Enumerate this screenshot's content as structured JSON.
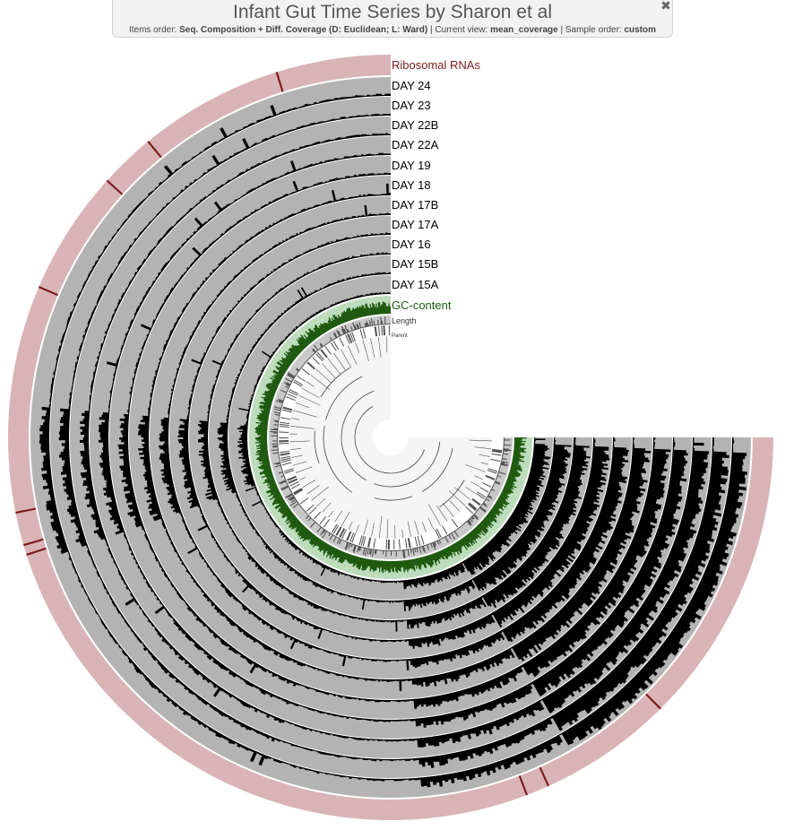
{
  "header": {
    "title": "Infant Gut Time Series by Sharon et al",
    "subtitle": {
      "items_order_label": "Items order:",
      "items_order_value": "Seq. Composition + Diff. Coverage (D: Euclidean; L: Ward)",
      "current_view_label": "Current view:",
      "current_view_value": "mean_coverage",
      "sample_order_label": "Sample order:",
      "sample_order_value": "custom",
      "separator": "|"
    },
    "close_icon": "close-x-icon",
    "close_glyph": "✖"
  },
  "chart_data": {
    "type": "circular-phylogram",
    "layers": [
      {
        "name": "Ribosomal RNAs",
        "kind": "categorical",
        "color": "#d9b4b6",
        "label_color": "#7a1c1c"
      },
      {
        "name": "DAY 24",
        "kind": "bar",
        "color": "#000000",
        "background": "#b3b3b3"
      },
      {
        "name": "DAY 23",
        "kind": "bar",
        "color": "#000000",
        "background": "#b3b3b3"
      },
      {
        "name": "DAY 22B",
        "kind": "bar",
        "color": "#000000",
        "background": "#b3b3b3"
      },
      {
        "name": "DAY 22A",
        "kind": "bar",
        "color": "#000000",
        "background": "#b3b3b3"
      },
      {
        "name": "DAY 19",
        "kind": "bar",
        "color": "#000000",
        "background": "#b3b3b3"
      },
      {
        "name": "DAY 18",
        "kind": "bar",
        "color": "#000000",
        "background": "#b3b3b3"
      },
      {
        "name": "DAY 17B",
        "kind": "bar",
        "color": "#000000",
        "background": "#b3b3b3"
      },
      {
        "name": "DAY 17A",
        "kind": "bar",
        "color": "#000000",
        "background": "#b3b3b3"
      },
      {
        "name": "DAY 16",
        "kind": "bar",
        "color": "#000000",
        "background": "#b3b3b3"
      },
      {
        "name": "DAY 15B",
        "kind": "bar",
        "color": "#000000",
        "background": "#b3b3b3"
      },
      {
        "name": "DAY 15A",
        "kind": "bar",
        "color": "#000000",
        "background": "#b3b3b3"
      },
      {
        "name": "GC-content",
        "kind": "bar",
        "color": "#1f5a10",
        "background": "#bcdcbc",
        "label_color": "#1f5a10"
      },
      {
        "name": "Length",
        "kind": "bar",
        "color": "#555555",
        "background": "#c8c8c8",
        "label_color": "#333333"
      },
      {
        "name": "Parent",
        "kind": "categorical",
        "color": "#555555",
        "background": "#ffffff",
        "label_color": "#333333"
      }
    ],
    "angular_extent_degrees": 270,
    "tree": "dendrogram at center"
  }
}
